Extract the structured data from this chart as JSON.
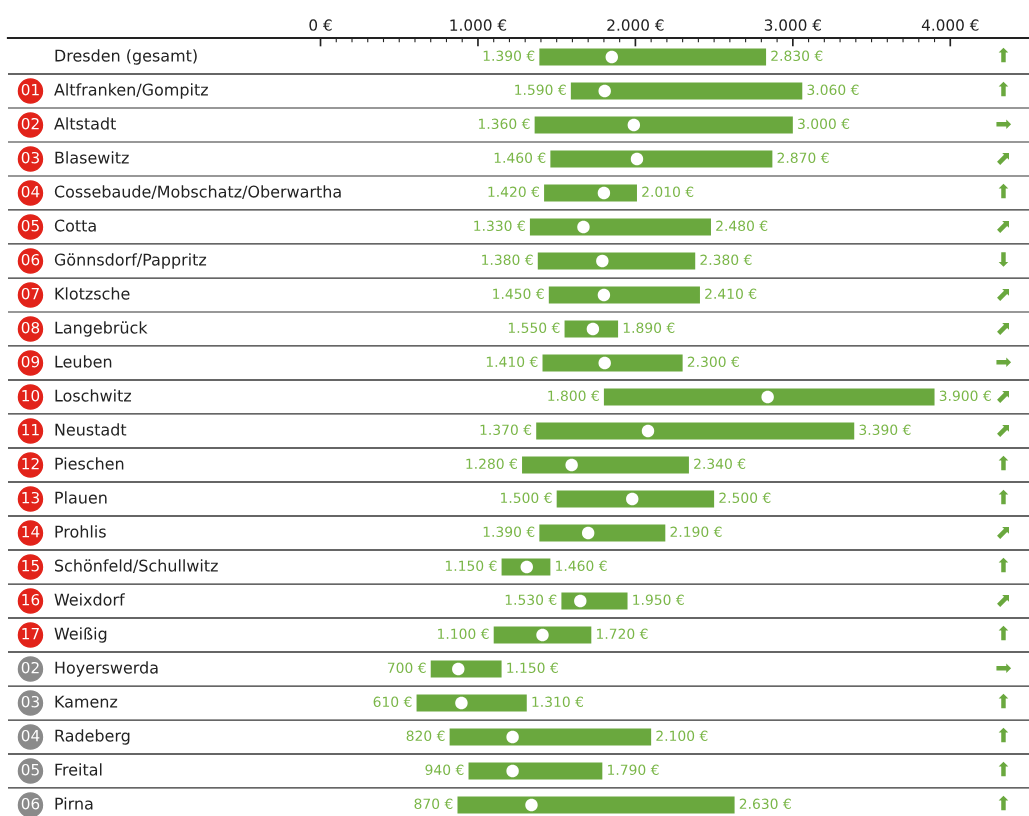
{
  "chart_data": {
    "type": "bar",
    "orientation": "horizontal",
    "categories": [
      "Dresden (gesamt)",
      "Altfranken/Gompitz",
      "Altstadt",
      "Blasewitz",
      "Cossebaude/Mobschatz/Oberwartha",
      "Cotta",
      "Gönnsdorf/Pappritz",
      "Klotzsche",
      "Langebrück",
      "Leuben",
      "Loschwitz",
      "Neustadt",
      "Pieschen",
      "Plauen",
      "Prohlis",
      "Schönfeld/Schullwitz",
      "Weixdorf",
      "Weißig",
      "Hoyerswerda",
      "Kamenz",
      "Radeberg",
      "Freital",
      "Pirna"
    ],
    "y2_categories": [
      "⬆",
      "⬆",
      "➡",
      "⬈",
      "⬆",
      "⬈",
      "⬇",
      "⬈",
      "⬈",
      "➡",
      "⬈",
      "⬈",
      "⬆",
      "⬆",
      "⬈",
      "⬆",
      "⬈",
      "⬆",
      "➡",
      "⬆",
      "⬆",
      "⬆",
      "⬆"
    ],
    "xlim": [
      -1985,
      4500
    ],
    "xticks": [
      {
        "value": 0,
        "label": "0 €"
      },
      {
        "value": 1000,
        "label": "1.000 €"
      },
      {
        "value": 2000,
        "label": "2.000 €"
      },
      {
        "value": 3000,
        "label": "3.000 €"
      },
      {
        "value": 4000,
        "label": "4.000 €"
      }
    ],
    "series": [
      {
        "color": "#6aa83e",
        "base": [
          1390,
          1590,
          1360,
          1460,
          1420,
          1330,
          1380,
          1450,
          1550,
          1410,
          1800,
          1370,
          1280,
          1500,
          1390,
          1150,
          1530,
          1100,
          700,
          610,
          820,
          940,
          870
        ],
        "values": [
          1440,
          1470,
          1640,
          1410,
          590,
          1150,
          1000,
          960,
          340,
          890,
          2100,
          2020,
          1060,
          1000,
          800,
          310,
          420,
          620,
          450,
          700,
          1280,
          850,
          1760
        ],
        "value_labels": [
          [
            "1.390 €",
            "2.830 €"
          ],
          [
            "1.590 €",
            "3.060 €"
          ],
          [
            "1.360 €",
            "3.000 €"
          ],
          [
            "1.460 €",
            "2.870 €"
          ],
          [
            "1.420 €",
            "2.010 €"
          ],
          [
            "1.330 €",
            "2.480 €"
          ],
          [
            "1.380 €",
            "2.380 €"
          ],
          [
            "1.450 €",
            "2.410 €"
          ],
          [
            "1.550 €",
            "1.890 €"
          ],
          [
            "1.410 €",
            "2.300 €"
          ],
          [
            "1.800 €",
            "3.900 €"
          ],
          [
            "1.370 €",
            "3.390 €"
          ],
          [
            "1.280 €",
            "2.340 €"
          ],
          [
            "1.500 €",
            "2.500 €"
          ],
          [
            "1.390 €",
            "2.190 €"
          ],
          [
            "1.150 €",
            "1.460 €"
          ],
          [
            "1.530 €",
            "1.950 €"
          ],
          [
            "1.100 €",
            "1.720 €"
          ],
          [
            "700 €",
            "1.150 €"
          ],
          [
            "610 €",
            "1.310 €"
          ],
          [
            "820 €",
            "2.100 €"
          ],
          [
            "940 €",
            "1.790 €"
          ],
          [
            "870 €",
            "2.630 €"
          ]
        ]
      },
      {
        "type": "scatter",
        "color": "#ffffff",
        "marker": "circle",
        "values": [
          1850,
          1805,
          1990,
          2010,
          1800,
          1670,
          1790,
          1800,
          1730,
          1805,
          2840,
          2080,
          1595,
          1980,
          1700,
          1310,
          1650,
          1410,
          875,
          895,
          1220,
          1220,
          1340
        ]
      }
    ],
    "annotations": [
      "01",
      "02",
      "03",
      "04",
      "05",
      "06",
      "07",
      "08",
      "09",
      "10",
      "11",
      "12",
      "13",
      "14",
      "15",
      "16",
      "17",
      "02",
      "03",
      "04",
      "05",
      "06"
    ]
  }
}
